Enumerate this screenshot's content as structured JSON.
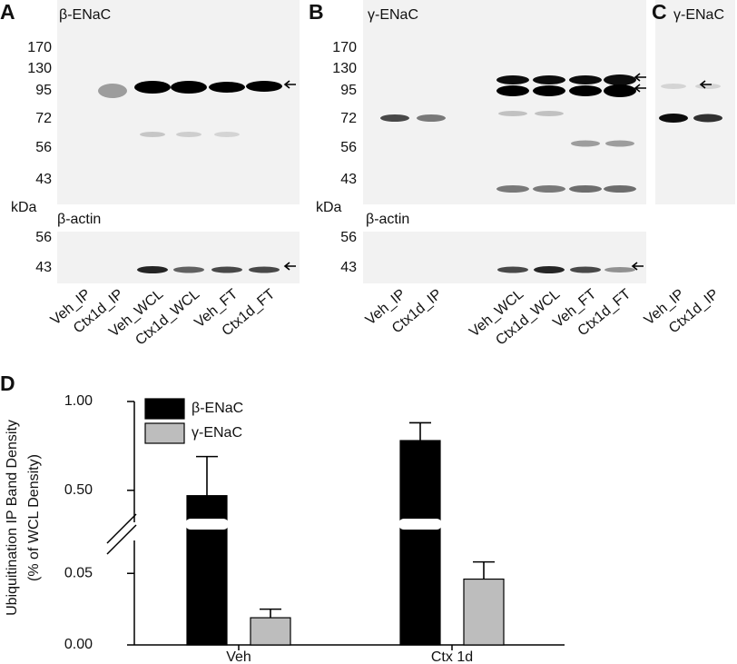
{
  "panels": [
    {
      "label": "A",
      "title": "β-ENaC",
      "markers": [
        "170",
        "130",
        "95",
        "72",
        "56",
        "43"
      ],
      "unit": "kDa",
      "loading_title": "β-actin",
      "loading_markers": [
        "56",
        "43"
      ],
      "lanes": [
        "Veh_IP",
        "Ctx1d_IP",
        "Veh_WCL",
        "Ctx1d_WCL",
        "Veh_FT",
        "Ctx1d_FT"
      ]
    },
    {
      "label": "B",
      "title": "γ-ENaC",
      "markers": [
        "170",
        "130",
        "95",
        "72",
        "56",
        "43"
      ],
      "unit": "kDa",
      "loading_title": "β-actin",
      "loading_markers": [
        "56",
        "43"
      ],
      "lanes": [
        "Veh_IP",
        "Ctx1d_IP",
        "Veh_WCL",
        "Ctx1d_WCL",
        "Veh_FT",
        "Ctx1d_FT"
      ]
    },
    {
      "label": "C",
      "title": "γ-ENaC",
      "lanes": [
        "Veh_IP",
        "Ctx1d_IP"
      ]
    }
  ],
  "chart_data": {
    "type": "bar",
    "label": "D",
    "ylabel": [
      "Ubiquitination IP Band Density",
      "(% of WCL Density)"
    ],
    "categories": [
      "Veh",
      "Ctx 1d"
    ],
    "series": [
      {
        "name": "β-ENaC",
        "color": "#000000",
        "values": [
          0.47,
          0.78
        ],
        "errors": [
          0.22,
          0.1
        ]
      },
      {
        "name": "γ-ENaC",
        "color": "#bdbdbd",
        "values": [
          0.019,
          0.046
        ],
        "errors": [
          0.006,
          0.012
        ]
      }
    ],
    "y_segments": [
      {
        "ylim": [
          0,
          0.073
        ],
        "yticks": [
          {
            "value": 0,
            "label": "0.00"
          },
          {
            "value": 0.05,
            "label": "0.05"
          }
        ]
      },
      {
        "ylim": [
          0.32,
          1.0
        ],
        "yticks": [
          {
            "value": 0.5,
            "label": "0.50"
          },
          {
            "value": 1.0,
            "label": "1.00"
          }
        ]
      }
    ],
    "legend": "upper left"
  }
}
